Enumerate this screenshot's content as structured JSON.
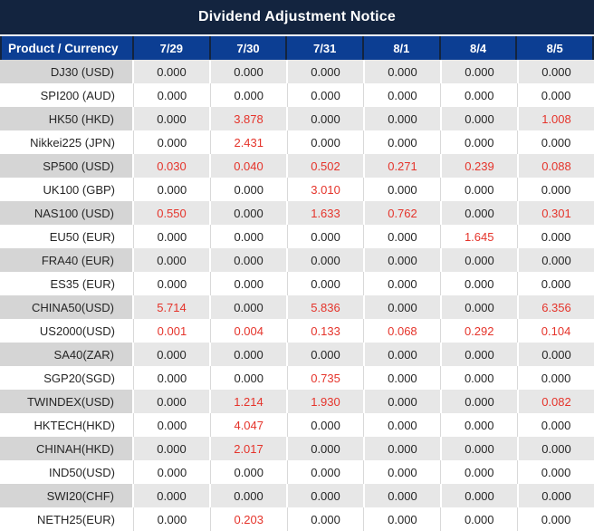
{
  "title": "Dividend Adjustment Notice",
  "colors": {
    "title_bg": "#13243f",
    "header_bg": "#0c3e93",
    "header_divider": "#13243f",
    "label_gray": "#d5d5d5",
    "value_gray": "#e7e7e7",
    "row_white": "#ffffff",
    "separator_light": "#d9d9d9",
    "text_dark": "#262626",
    "text_red": "#e5342b",
    "header_text": "#ffffff"
  },
  "table": {
    "product_header": "Product / Currency",
    "date_headers": [
      "7/29",
      "7/30",
      "7/31",
      "8/1",
      "8/4",
      "8/5"
    ],
    "rows": [
      {
        "product": "DJ30 (USD)",
        "values": [
          "0.000",
          "0.000",
          "0.000",
          "0.000",
          "0.000",
          "0.000"
        ],
        "red": [
          false,
          false,
          false,
          false,
          false,
          false
        ]
      },
      {
        "product": "SPI200 (AUD)",
        "values": [
          "0.000",
          "0.000",
          "0.000",
          "0.000",
          "0.000",
          "0.000"
        ],
        "red": [
          false,
          false,
          false,
          false,
          false,
          false
        ]
      },
      {
        "product": "HK50 (HKD)",
        "values": [
          "0.000",
          "3.878",
          "0.000",
          "0.000",
          "0.000",
          "1.008"
        ],
        "red": [
          false,
          true,
          false,
          false,
          false,
          true
        ]
      },
      {
        "product": "Nikkei225 (JPN)",
        "values": [
          "0.000",
          "2.431",
          "0.000",
          "0.000",
          "0.000",
          "0.000"
        ],
        "red": [
          false,
          true,
          false,
          false,
          false,
          false
        ]
      },
      {
        "product": "SP500 (USD)",
        "values": [
          "0.030",
          "0.040",
          "0.502",
          "0.271",
          "0.239",
          "0.088"
        ],
        "red": [
          true,
          true,
          true,
          true,
          true,
          true
        ]
      },
      {
        "product": "UK100 (GBP)",
        "values": [
          "0.000",
          "0.000",
          "3.010",
          "0.000",
          "0.000",
          "0.000"
        ],
        "red": [
          false,
          false,
          true,
          false,
          false,
          false
        ]
      },
      {
        "product": "NAS100 (USD)",
        "values": [
          "0.550",
          "0.000",
          "1.633",
          "0.762",
          "0.000",
          "0.301"
        ],
        "red": [
          true,
          false,
          true,
          true,
          false,
          true
        ]
      },
      {
        "product": "EU50 (EUR)",
        "values": [
          "0.000",
          "0.000",
          "0.000",
          "0.000",
          "1.645",
          "0.000"
        ],
        "red": [
          false,
          false,
          false,
          false,
          true,
          false
        ]
      },
      {
        "product": "FRA40 (EUR)",
        "values": [
          "0.000",
          "0.000",
          "0.000",
          "0.000",
          "0.000",
          "0.000"
        ],
        "red": [
          false,
          false,
          false,
          false,
          false,
          false
        ]
      },
      {
        "product": "ES35 (EUR)",
        "values": [
          "0.000",
          "0.000",
          "0.000",
          "0.000",
          "0.000",
          "0.000"
        ],
        "red": [
          false,
          false,
          false,
          false,
          false,
          false
        ]
      },
      {
        "product": "CHINA50(USD)",
        "values": [
          "5.714",
          "0.000",
          "5.836",
          "0.000",
          "0.000",
          "6.356"
        ],
        "red": [
          true,
          false,
          true,
          false,
          false,
          true
        ]
      },
      {
        "product": "US2000(USD)",
        "values": [
          "0.001",
          "0.004",
          "0.133",
          "0.068",
          "0.292",
          "0.104"
        ],
        "red": [
          true,
          true,
          true,
          true,
          true,
          true
        ]
      },
      {
        "product": "SA40(ZAR)",
        "values": [
          "0.000",
          "0.000",
          "0.000",
          "0.000",
          "0.000",
          "0.000"
        ],
        "red": [
          false,
          false,
          false,
          false,
          false,
          false
        ]
      },
      {
        "product": "SGP20(SGD)",
        "values": [
          "0.000",
          "0.000",
          "0.735",
          "0.000",
          "0.000",
          "0.000"
        ],
        "red": [
          false,
          false,
          true,
          false,
          false,
          false
        ]
      },
      {
        "product": "TWINDEX(USD)",
        "values": [
          "0.000",
          "1.214",
          "1.930",
          "0.000",
          "0.000",
          "0.082"
        ],
        "red": [
          false,
          true,
          true,
          false,
          false,
          true
        ]
      },
      {
        "product": "HKTECH(HKD)",
        "values": [
          "0.000",
          "4.047",
          "0.000",
          "0.000",
          "0.000",
          "0.000"
        ],
        "red": [
          false,
          true,
          false,
          false,
          false,
          false
        ]
      },
      {
        "product": "CHINAH(HKD)",
        "values": [
          "0.000",
          "2.017",
          "0.000",
          "0.000",
          "0.000",
          "0.000"
        ],
        "red": [
          false,
          true,
          false,
          false,
          false,
          false
        ]
      },
      {
        "product": "IND50(USD)",
        "values": [
          "0.000",
          "0.000",
          "0.000",
          "0.000",
          "0.000",
          "0.000"
        ],
        "red": [
          false,
          false,
          false,
          false,
          false,
          false
        ]
      },
      {
        "product": "SWI20(CHF)",
        "values": [
          "0.000",
          "0.000",
          "0.000",
          "0.000",
          "0.000",
          "0.000"
        ],
        "red": [
          false,
          false,
          false,
          false,
          false,
          false
        ]
      },
      {
        "product": "NETH25(EUR)",
        "values": [
          "0.000",
          "0.203",
          "0.000",
          "0.000",
          "0.000",
          "0.000"
        ],
        "red": [
          false,
          true,
          false,
          false,
          false,
          false
        ]
      }
    ]
  }
}
